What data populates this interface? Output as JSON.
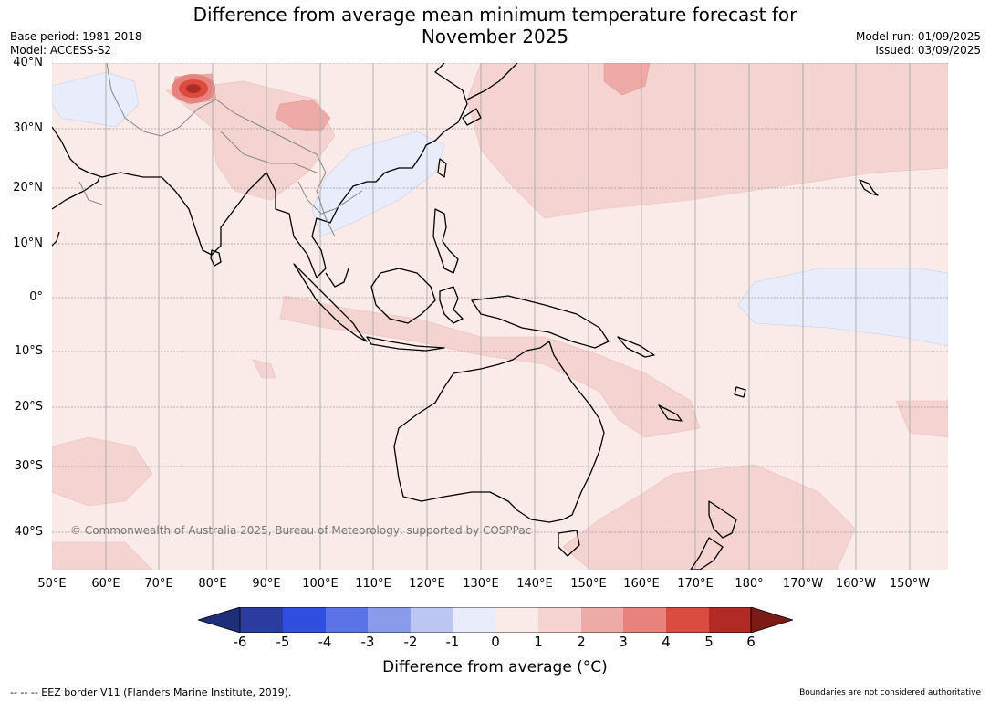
{
  "header": {
    "title_line1": "Difference from average mean minimum temperature forecast for",
    "title_line2": "November 2025",
    "base_period": "Base period: 1981-2018",
    "model": "Model: ACCESS-S2",
    "model_run": "Model run: 01/09/2025",
    "issued": "Issued: 03/09/2025"
  },
  "map": {
    "lat_labels": [
      "40°N",
      "30°N",
      "20°N",
      "10°N",
      "0°",
      "10°S",
      "20°S",
      "30°S",
      "40°S"
    ],
    "lon_labels": [
      "50°E",
      "60°E",
      "70°E",
      "80°E",
      "90°E",
      "100°E",
      "110°E",
      "120°E",
      "130°E",
      "140°E",
      "150°E",
      "160°E",
      "170°E",
      "180°",
      "170°W",
      "160°W",
      "150°W"
    ],
    "copyright": "© Commonwealth of Australia 2025, Bureau of Meteorology, supported by COSPPac",
    "colors": {
      "ocean_base": "#fbebe8",
      "warm_1_2": "#f4d3d0",
      "warm_2_3": "#edaaa6",
      "warm_3_4": "#e7837c",
      "cool_0_1": "#e8ecfb",
      "land_outline": "#000000",
      "border_grey": "#888888"
    }
  },
  "legend": {
    "ticks": [
      "-6",
      "-5",
      "-4",
      "-3",
      "-2",
      "-1",
      "0",
      "1",
      "2",
      "3",
      "4",
      "5",
      "6"
    ],
    "colors": [
      "#2a3c9e",
      "#2f4fe0",
      "#5a74e6",
      "#8a9ce9",
      "#bcc6f3",
      "#e8ecfb",
      "#fbebe8",
      "#f4d3d0",
      "#edaaa6",
      "#e7837c",
      "#db4b3f",
      "#b12b24"
    ],
    "under_color": "#1f2e7a",
    "over_color": "#7a1b16",
    "label": "Difference from average (°C)"
  },
  "footer": {
    "eez": "--  --  -- EEZ border V11 (Flanders Marine Institute, 2019).",
    "disclaimer": "Boundaries are not considered authoritative"
  }
}
